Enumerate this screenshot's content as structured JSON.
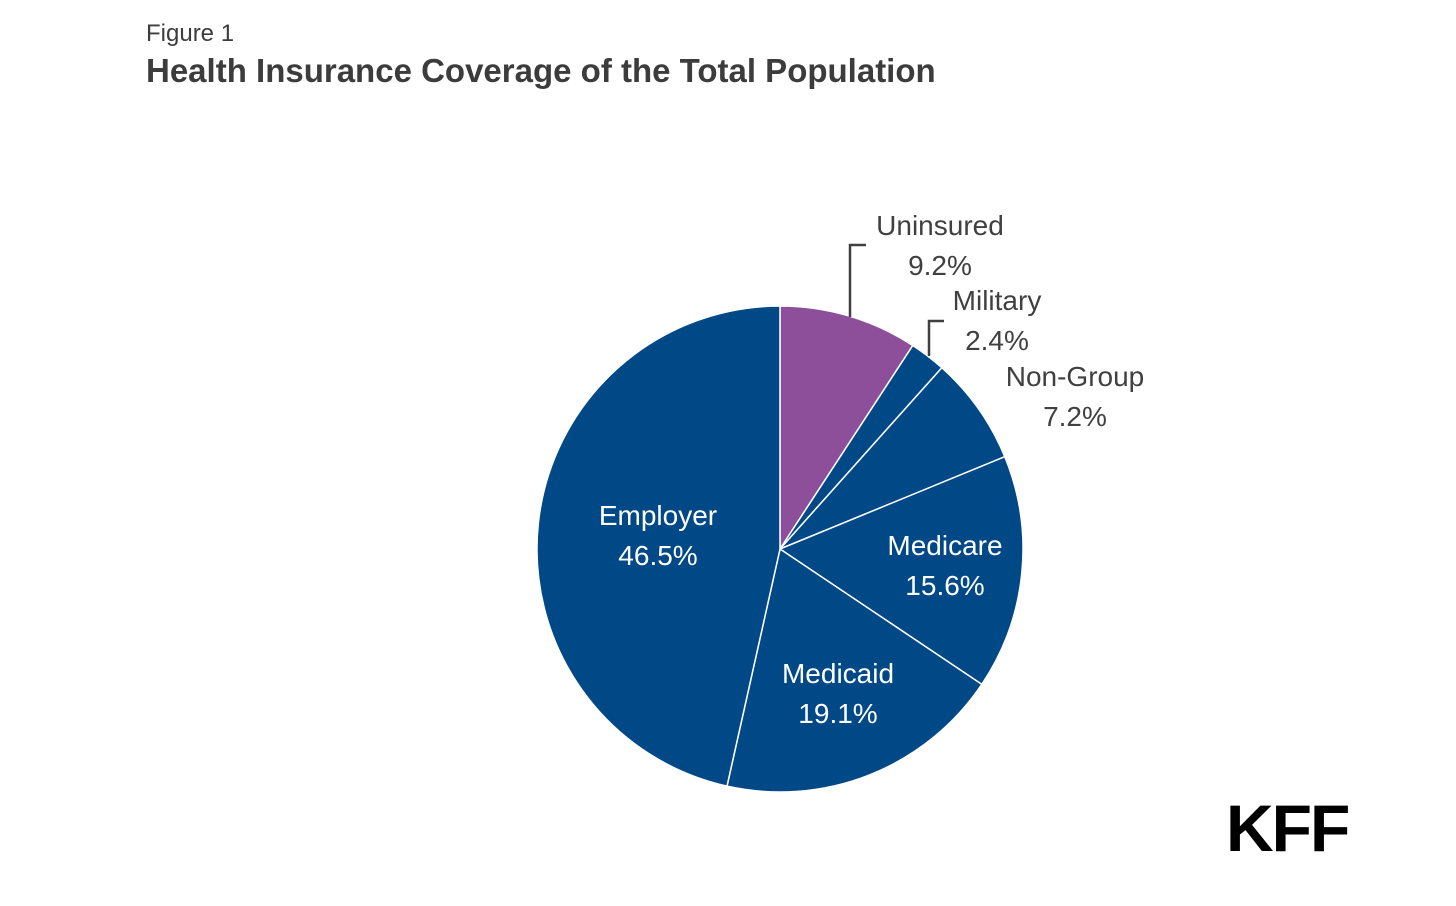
{
  "header": {
    "figure_label": "Figure 1",
    "title": "Health Insurance Coverage of the Total Population"
  },
  "chart_data": {
    "type": "pie",
    "title": "Health Insurance Coverage of the Total Population",
    "start": "12 o'clock",
    "direction": "clockwise",
    "slices": [
      {
        "key": "uninsured",
        "label": "Uninsured",
        "value": 9.2,
        "value_label": "9.2%",
        "color": "#8d4e9a",
        "label_placement": "outside"
      },
      {
        "key": "military",
        "label": "Military",
        "value": 2.4,
        "value_label": "2.4%",
        "color": "#004986",
        "label_placement": "outside"
      },
      {
        "key": "non-group",
        "label": "Non-Group",
        "value": 7.2,
        "value_label": "7.2%",
        "color": "#004986",
        "label_placement": "outside"
      },
      {
        "key": "medicare",
        "label": "Medicare",
        "value": 15.6,
        "value_label": "15.6%",
        "color": "#004986",
        "label_placement": "inside"
      },
      {
        "key": "medicaid",
        "label": "Medicaid",
        "value": 19.1,
        "value_label": "19.1%",
        "color": "#004986",
        "label_placement": "inside"
      },
      {
        "key": "employer",
        "label": "Employer",
        "value": 46.5,
        "value_label": "46.5%",
        "color": "#004986",
        "label_placement": "inside"
      }
    ]
  },
  "logo": {
    "text": "KFF"
  }
}
